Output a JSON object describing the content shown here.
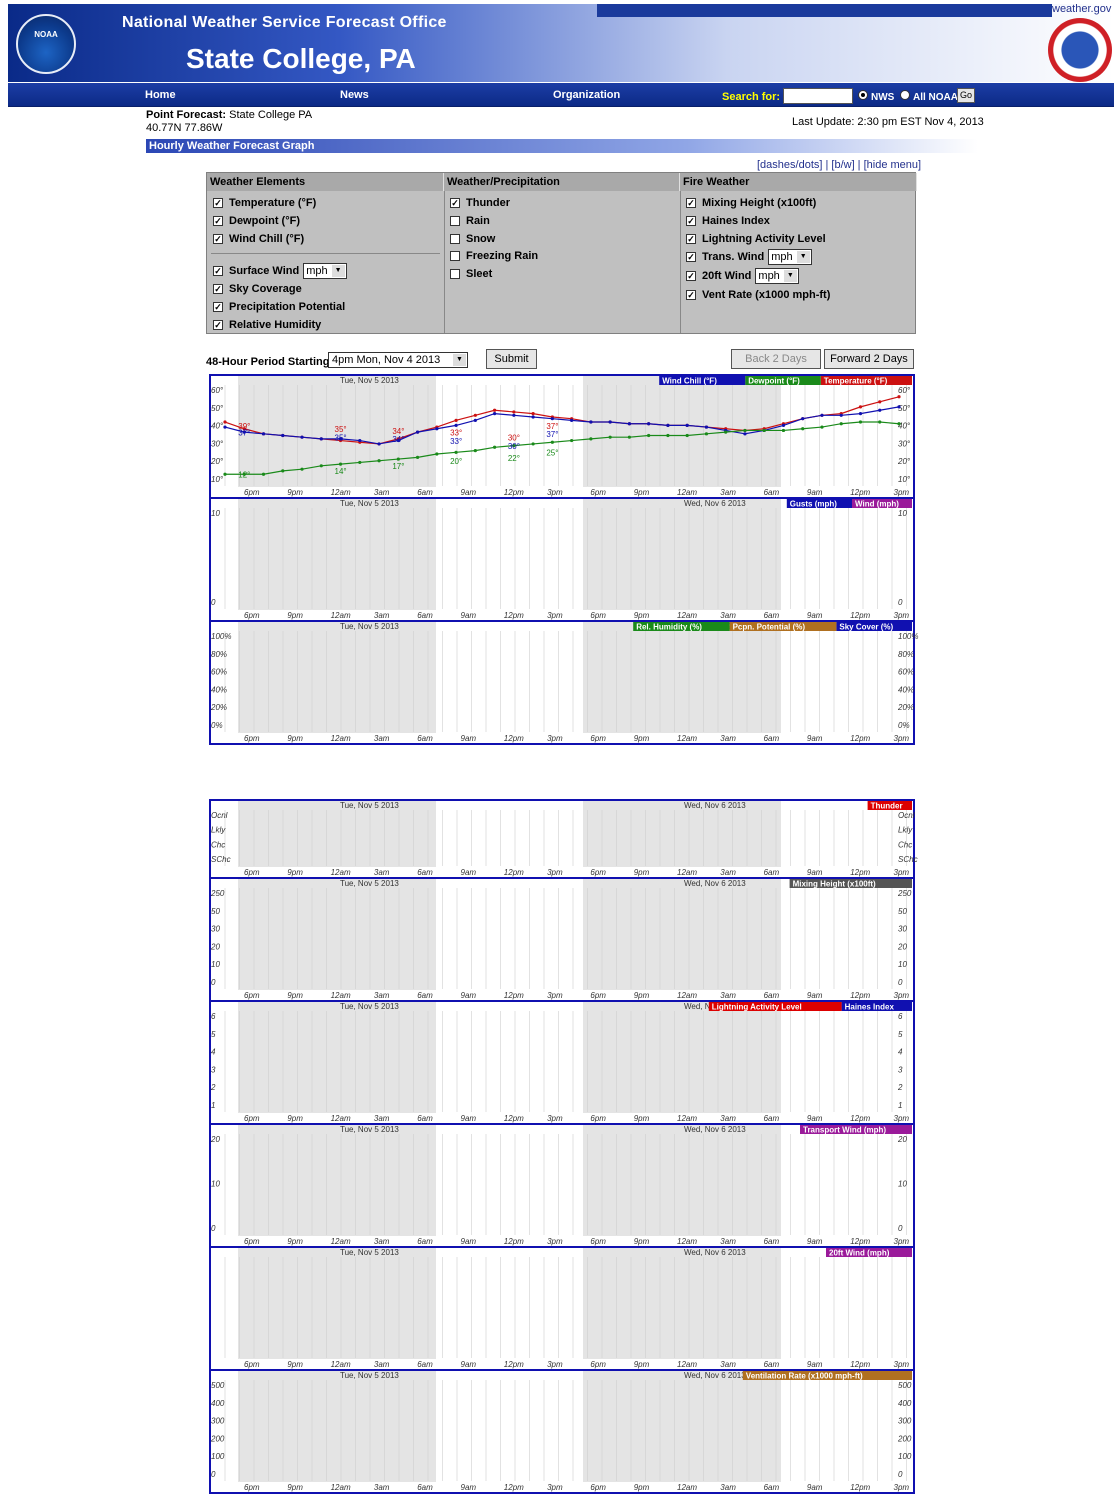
{
  "site": {
    "weathergov": "weather.gov",
    "office": "National Weather Service Forecast Office",
    "city": "State College, PA",
    "noaa_logo_text": "NOAA"
  },
  "nav": {
    "home": "Home",
    "news": "News",
    "organization": "Organization",
    "search_label": "Search for:",
    "radio_nws": "NWS",
    "radio_all": "All NOAA",
    "go": "Go"
  },
  "point": {
    "label": "Point Forecast:",
    "name": "State College PA",
    "coords": "40.77N 77.86W",
    "last_update": "Last Update: 2:30 pm EST Nov 4, 2013"
  },
  "section_title": "Hourly Weather Forecast Graph",
  "menu_links": "[dashes/dots] | [b/w] | [hide menu]",
  "menu": {
    "col1": "Weather Elements",
    "col2": "Weather/Precipitation",
    "col3": "Fire Weather",
    "wx": [
      "Temperature (°F)",
      "Dewpoint (°F)",
      "Wind Chill (°F)",
      "Surface Wind",
      "Sky Coverage",
      "Precipitation Potential",
      "Relative Humidity"
    ],
    "precip": [
      "Thunder",
      "Rain",
      "Snow",
      "Freezing Rain",
      "Sleet"
    ],
    "fire": [
      "Mixing Height (x100ft)",
      "Haines Index",
      "Lightning Activity Level",
      "Trans. Wind",
      "20ft Wind",
      "Vent Rate (x1000 mph-ft)"
    ],
    "unit": "mph"
  },
  "period": {
    "label": "48-Hour Period Starting:",
    "value": "4pm Mon, Nov 4 2013",
    "submit": "Submit",
    "back": "Back 2 Days",
    "forward": "Forward 2 Days"
  },
  "chart_data": {
    "time_labels": [
      "6pm",
      "9pm",
      "12am",
      "3am",
      "6am",
      "9am",
      "12pm",
      "3pm",
      "6pm",
      "9pm",
      "12am",
      "3am",
      "6am",
      "9am",
      "12pm",
      "3pm"
    ],
    "day1": "Tue, Nov 5 2013",
    "day2": "Wed, Nov 6 2013",
    "panels": [
      {
        "type": "line",
        "legend": [
          "Wind Chill (°F)",
          "Dewpoint (°F)",
          "Temperature (°F)"
        ],
        "legend_colors": [
          "#1010b0",
          "#1a8a1a",
          "#cc1111"
        ],
        "yticks": [
          "60°",
          "50°",
          "40°",
          "30°",
          "20°",
          "10°"
        ],
        "ylim": [
          5,
          65
        ],
        "series": [
          {
            "name": "Temperature (°F)",
            "color": "#cc1111",
            "values": [
              43,
              39,
              36,
              35,
              34,
              33,
              32,
              31,
              30,
              33,
              37,
              40,
              44,
              47,
              50,
              49,
              48,
              46,
              45,
              43,
              43,
              42,
              42,
              41,
              41,
              40,
              39,
              38,
              39,
              42,
              45,
              47,
              48,
              52,
              55,
              58
            ]
          },
          {
            "name": "Wind Chill (°F)",
            "color": "#1010b0",
            "values": [
              40,
              37,
              36,
              35,
              34,
              33,
              33,
              32,
              30,
              32,
              37,
              39,
              41,
              44,
              48,
              47,
              46,
              45,
              44,
              43,
              43,
              42,
              42,
              41,
              41,
              40,
              38,
              36,
              38,
              41,
              45,
              47,
              47,
              48,
              50,
              52
            ]
          },
          {
            "name": "Dewpoint (°F)",
            "color": "#1a8a1a",
            "values": [
              12,
              12,
              12,
              14,
              15,
              17,
              18,
              19,
              20,
              21,
              22,
              24,
              25,
              26,
              28,
              29,
              30,
              31,
              32,
              33,
              34,
              34,
              35,
              35,
              35,
              36,
              37,
              38,
              38,
              38,
              39,
              40,
              42,
              43,
              43,
              42
            ]
          }
        ],
        "labels": [
          {
            "i": 1,
            "t": "39°",
            "c": "#cc1111",
            "v": 39
          },
          {
            "i": 1,
            "t": "37°",
            "c": "#1010b0",
            "v": 35
          },
          {
            "i": 1,
            "t": "12°",
            "c": "#1a8a1a",
            "v": 10
          },
          {
            "i": 6,
            "t": "35°",
            "c": "#cc1111",
            "v": 37
          },
          {
            "i": 6,
            "t": "35°",
            "c": "#1010b0",
            "v": 32
          },
          {
            "i": 6,
            "t": "14°",
            "c": "#1a8a1a",
            "v": 12
          },
          {
            "i": 9,
            "t": "34°",
            "c": "#cc1111",
            "v": 36
          },
          {
            "i": 9,
            "t": "34°",
            "c": "#1010b0",
            "v": 31
          },
          {
            "i": 9,
            "t": "17°",
            "c": "#1a8a1a",
            "v": 15
          },
          {
            "i": 12,
            "t": "33°",
            "c": "#cc1111",
            "v": 35
          },
          {
            "i": 12,
            "t": "33°",
            "c": "#1010b0",
            "v": 30
          },
          {
            "i": 12,
            "t": "20°",
            "c": "#1a8a1a",
            "v": 18
          },
          {
            "i": 15,
            "t": "30°",
            "c": "#cc1111",
            "v": 32
          },
          {
            "i": 15,
            "t": "30°",
            "c": "#1010b0",
            "v": 27
          },
          {
            "i": 15,
            "t": "22°",
            "c": "#1a8a1a",
            "v": 20
          },
          {
            "i": 17,
            "t": "37°",
            "c": "#cc1111",
            "v": 39
          },
          {
            "i": 17,
            "t": "37°",
            "c": "#1010b0",
            "v": 34
          },
          {
            "i": 17,
            "t": "25°",
            "c": "#1a8a1a",
            "v": 23
          }
        ]
      },
      {
        "type": "wind",
        "legend": [
          "Gusts (mph)",
          "Wind (mph)"
        ],
        "legend_colors": [
          "#1010b0",
          "#9a1a9a"
        ],
        "yticks": [
          "10",
          "0"
        ]
      },
      {
        "type": "line",
        "legend": [
          "Rel. Humidity (%)",
          "Pcpn. Potential (%)",
          "Sky Cover (%)"
        ],
        "legend_colors": [
          "#1a8a1a",
          "#b07020",
          "#1010b0"
        ],
        "yticks": [
          "100%",
          "80%",
          "60%",
          "40%",
          "20%",
          "0%"
        ]
      },
      {
        "type": "thunder",
        "legend": [
          "Thunder"
        ],
        "legend_colors": [
          "#dd0000"
        ],
        "yticks": [
          "Ocnl",
          "Lkly",
          "Chc",
          "SChc"
        ]
      },
      {
        "type": "line",
        "legend": [
          "Mixing Height (x100ft)"
        ],
        "legend_colors": [
          "#555555"
        ],
        "yticks": [
          "250",
          "50",
          "30",
          "20",
          "10",
          "0"
        ]
      },
      {
        "type": "line",
        "legend": [
          "Lightning Activity Level",
          "Haines Index"
        ],
        "legend_colors": [
          "#dd0000",
          "#1010b0"
        ],
        "yticks": [
          "6",
          "5",
          "4",
          "3",
          "2",
          "1"
        ]
      },
      {
        "type": "wind",
        "legend": [
          "Transport Wind (mph)"
        ],
        "legend_colors": [
          "#9a1a9a"
        ],
        "yticks": [
          "20",
          "10",
          "0"
        ]
      },
      {
        "type": "wind",
        "legend": [
          "20ft Wind (mph)"
        ],
        "legend_colors": [
          "#9a1a9a"
        ],
        "yticks": []
      },
      {
        "type": "line",
        "legend": [
          "Ventilation Rate (x1000 mph-ft)"
        ],
        "legend_colors": [
          "#b07020"
        ],
        "yticks": [
          "500",
          "400",
          "300",
          "200",
          "100",
          "0"
        ]
      }
    ]
  }
}
